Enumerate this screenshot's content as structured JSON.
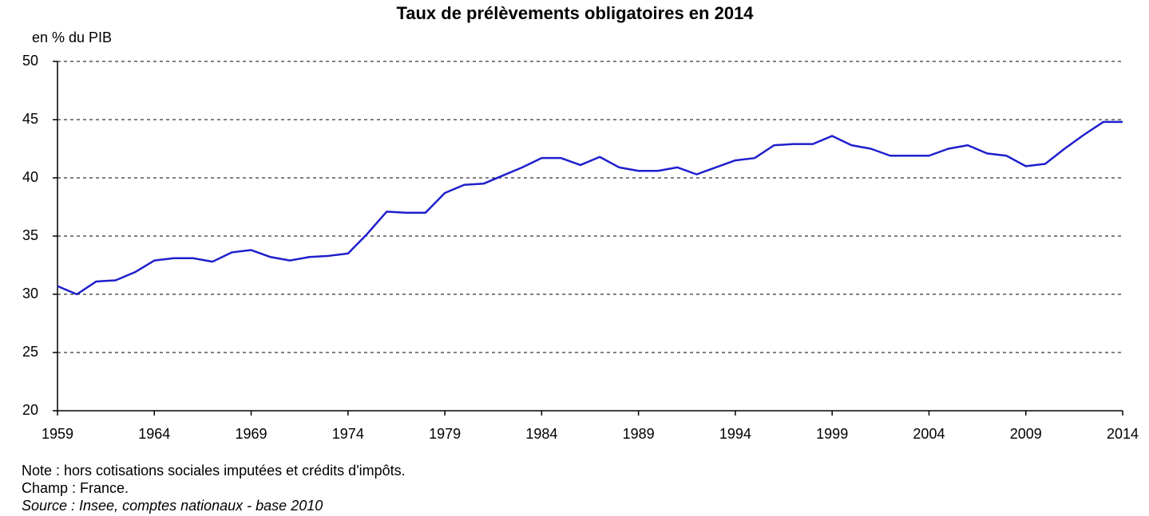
{
  "chart_data": {
    "type": "line",
    "title": "Taux de prélèvements obligatoires en 2014",
    "y_label": "en % du PIB",
    "notes": [
      "Note : hors cotisations sociales imputées et crédits d'impôts.",
      "Champ : France.",
      "Source : Insee, comptes nationaux - base 2010"
    ],
    "x": [
      1959,
      1960,
      1961,
      1962,
      1963,
      1964,
      1965,
      1966,
      1967,
      1968,
      1969,
      1970,
      1971,
      1972,
      1973,
      1974,
      1975,
      1976,
      1977,
      1978,
      1979,
      1980,
      1981,
      1982,
      1983,
      1984,
      1985,
      1986,
      1987,
      1988,
      1989,
      1990,
      1991,
      1992,
      1993,
      1994,
      1995,
      1996,
      1997,
      1998,
      1999,
      2000,
      2001,
      2002,
      2003,
      2004,
      2005,
      2006,
      2007,
      2008,
      2009,
      2010,
      2011,
      2012,
      2013,
      2014
    ],
    "series": [
      {
        "color": "#1f1fcc",
        "values": [
          30.7,
          30.0,
          31.1,
          31.2,
          31.9,
          32.9,
          33.1,
          33.1,
          32.8,
          33.6,
          33.8,
          33.2,
          32.9,
          33.2,
          33.3,
          33.5,
          35.2,
          37.1,
          37.0,
          37.0,
          38.7,
          39.4,
          39.5,
          40.2,
          40.9,
          41.7,
          41.7,
          41.1,
          41.8,
          40.9,
          40.6,
          40.6,
          40.9,
          40.3,
          40.9,
          41.5,
          41.7,
          42.8,
          42.9,
          42.9,
          43.6,
          42.8,
          42.5,
          41.9,
          41.9,
          41.9,
          42.5,
          42.8,
          42.1,
          41.9,
          41.0,
          41.2,
          42.5,
          43.7,
          44.8,
          44.8
        ]
      }
    ],
    "xlim": [
      1959,
      2014
    ],
    "xticks": [
      1959,
      1964,
      1969,
      1974,
      1979,
      1984,
      1989,
      1994,
      1999,
      2004,
      2009,
      2014
    ],
    "ylim": [
      20,
      50
    ],
    "yticks": [
      20,
      25,
      30,
      35,
      40,
      45,
      50
    ],
    "grid": true
  }
}
